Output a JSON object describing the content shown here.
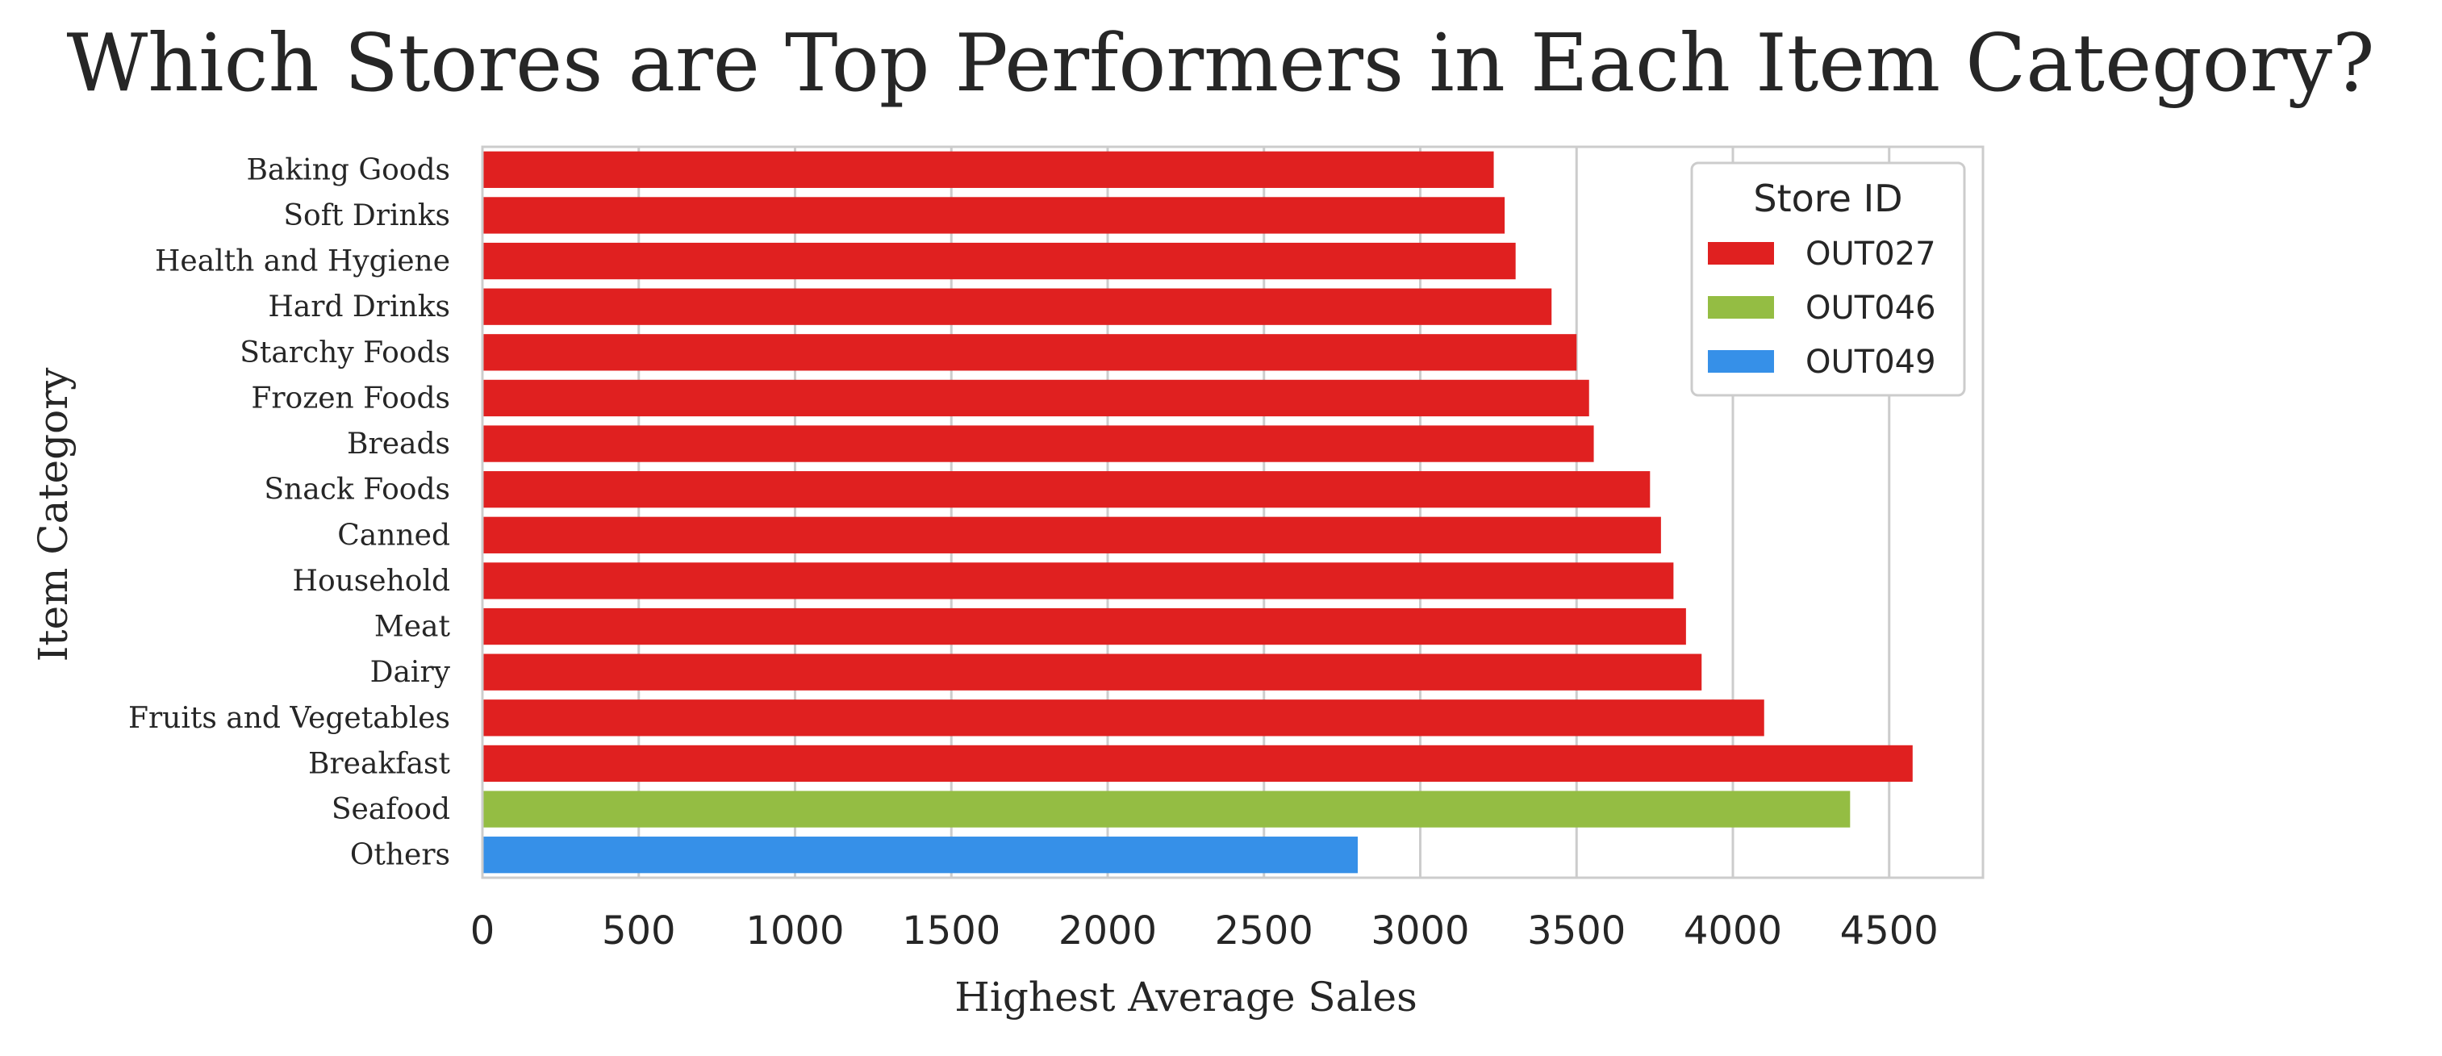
{
  "chart_data": {
    "type": "bar",
    "orientation": "horizontal",
    "title": "Which Stores are Top Performers in Each Item Category?",
    "xlabel": "Highest Average Sales",
    "ylabel": "Item Category",
    "xlim": [
      0,
      4800
    ],
    "xticks": [
      0,
      500,
      1000,
      1500,
      2000,
      2500,
      3000,
      3500,
      4000,
      4500
    ],
    "grid": true,
    "legend": {
      "title": "Store ID",
      "placement": "top-right",
      "entries": [
        {
          "name": "OUT027",
          "color": "#e02020"
        },
        {
          "name": "OUT046",
          "color": "#94bd43"
        },
        {
          "name": "OUT049",
          "color": "#3690e8"
        }
      ]
    },
    "categories": [
      "Baking Goods",
      "Soft Drinks",
      "Health and Hygiene",
      "Hard Drinks",
      "Starchy Foods",
      "Frozen Foods",
      "Breads",
      "Snack Foods",
      "Canned",
      "Household",
      "Meat",
      "Dairy",
      "Fruits and Vegetables",
      "Breakfast",
      "Seafood",
      "Others"
    ],
    "values": [
      3235,
      3270,
      3305,
      3420,
      3500,
      3540,
      3555,
      3735,
      3770,
      3810,
      3850,
      3900,
      4100,
      4575,
      4375,
      2800
    ],
    "stores": [
      "OUT027",
      "OUT027",
      "OUT027",
      "OUT027",
      "OUT027",
      "OUT027",
      "OUT027",
      "OUT027",
      "OUT027",
      "OUT027",
      "OUT027",
      "OUT027",
      "OUT027",
      "OUT027",
      "OUT046",
      "OUT049"
    ]
  }
}
